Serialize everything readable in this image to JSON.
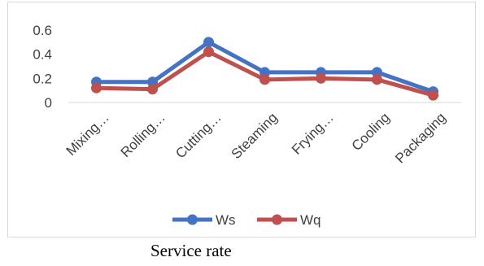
{
  "caption": "Service rate",
  "chart_data": {
    "type": "line",
    "categories": [
      "Mixing…",
      "Rolling…",
      "Cutting…",
      "Steaming",
      "Frying…",
      "Cooling",
      "Packaging"
    ],
    "series": [
      {
        "name": "Ws",
        "color": "#4472c4",
        "values": [
          0.17,
          0.17,
          0.5,
          0.25,
          0.25,
          0.25,
          0.09
        ]
      },
      {
        "name": "Wq",
        "color": "#c0504d",
        "values": [
          0.12,
          0.11,
          0.42,
          0.19,
          0.2,
          0.19,
          0.06
        ]
      }
    ],
    "yticks": [
      "0",
      "0.2",
      "0.4",
      "0.6"
    ],
    "ylim": [
      0,
      0.6
    ],
    "legend": "bottom",
    "grid": false
  }
}
